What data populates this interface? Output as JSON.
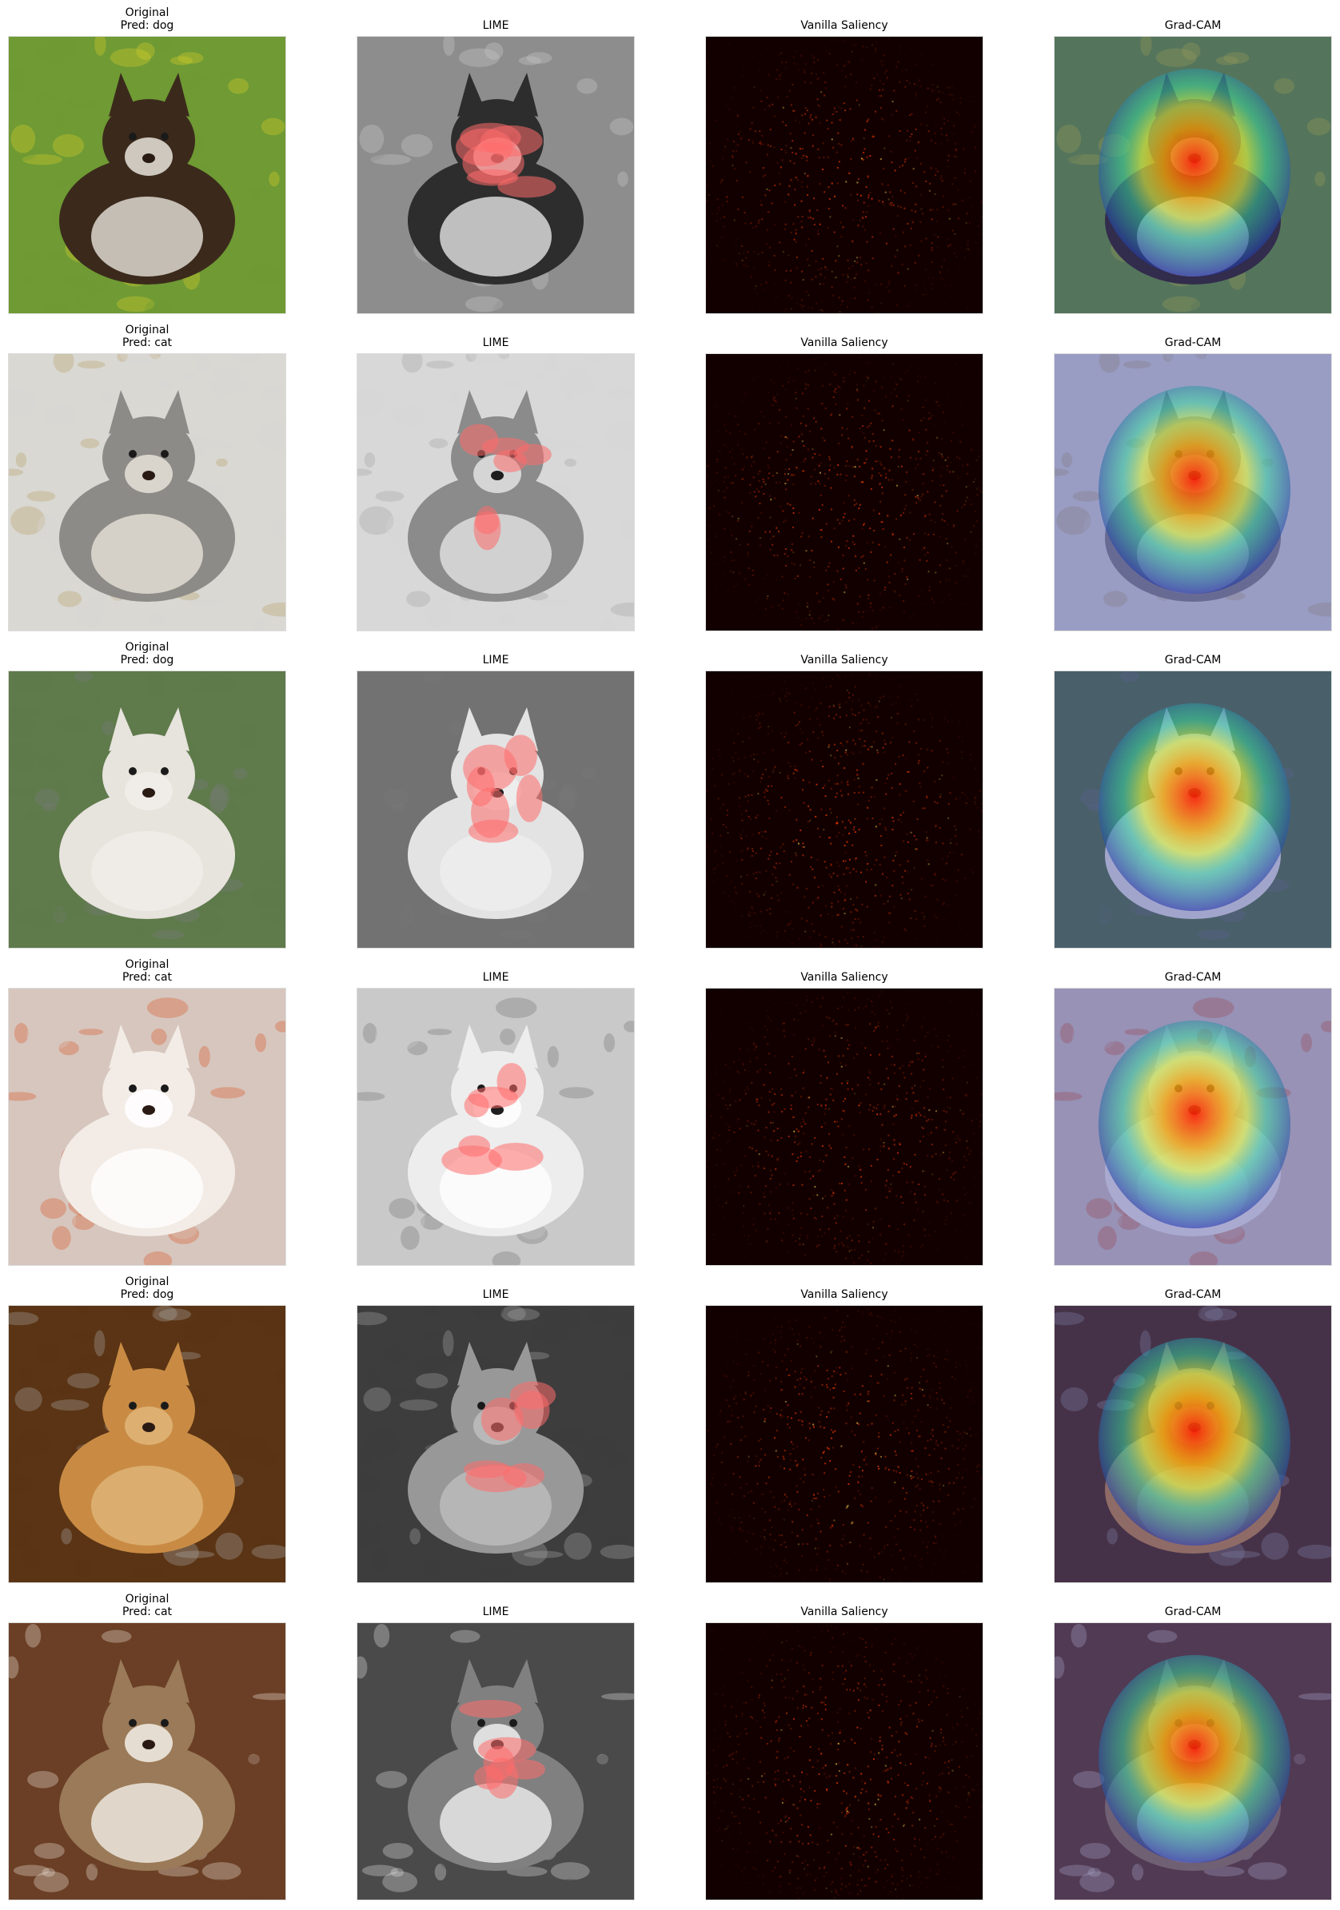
{
  "columns": [
    "original",
    "lime",
    "saliency",
    "gradcam"
  ],
  "rows": [
    {
      "prediction": "dog",
      "original_title": "Original\nPred: dog",
      "lime_title": "LIME",
      "saliency_title": "Vanilla Saliency",
      "gradcam_title": "Grad-CAM",
      "subject": "dog-running-in-grass",
      "palette": {
        "bg": "#6f9a34",
        "accent": "#d8cf2a",
        "subject": "#3b2a1c",
        "subject_light": "#e9e4dc"
      }
    },
    {
      "prediction": "cat",
      "original_title": "Original\nPred: cat",
      "lime_title": "LIME",
      "saliency_title": "Vanilla Saliency",
      "gradcam_title": "Grad-CAM",
      "subject": "cat-sitting-on-stool",
      "palette": {
        "bg": "#d9d8d3",
        "accent": "#b9a46d",
        "subject": "#8d8b87",
        "subject_light": "#e8e2d8"
      }
    },
    {
      "prediction": "dog",
      "original_title": "Original\nPred: dog",
      "lime_title": "LIME",
      "saliency_title": "Vanilla Saliency",
      "gradcam_title": "Grad-CAM",
      "subject": "white-boxer-dog",
      "palette": {
        "bg": "#5f7a4b",
        "accent": "#777a7b",
        "subject": "#e7e3dd",
        "subject_light": "#f1eeea"
      }
    },
    {
      "prediction": "cat",
      "original_title": "Original\nPred: cat",
      "lime_title": "LIME",
      "saliency_title": "Vanilla Saliency",
      "gradcam_title": "Grad-CAM",
      "subject": "birman-cat",
      "palette": {
        "bg": "#d6c6be",
        "accent": "#db5a2c",
        "subject": "#f3ece6",
        "subject_light": "#ffffff"
      }
    },
    {
      "prediction": "dog",
      "original_title": "Original\nPred: dog",
      "lime_title": "LIME",
      "saliency_title": "Vanilla Saliency",
      "gradcam_title": "Grad-CAM",
      "subject": "yorkshire-terrier",
      "palette": {
        "bg": "#5a3414",
        "accent": "#a8a6a0",
        "subject": "#c98b44",
        "subject_light": "#e0b67a"
      }
    },
    {
      "prediction": "cat",
      "original_title": "Original\nPred: cat",
      "lime_title": "LIME",
      "saliency_title": "Vanilla Saliency",
      "gradcam_title": "Grad-CAM",
      "subject": "tabby-cat-sleeping",
      "palette": {
        "bg": "#6b3f25",
        "accent": "#e7ddd0",
        "subject": "#9a7a58",
        "subject_light": "#f3eee7"
      }
    }
  ],
  "colors": {
    "lime_highlight": "#ff6b6b",
    "saliency_base": "#120000",
    "saliency_hot": "#ff3b00",
    "gradcam_cold": "#2232a8",
    "gradcam_hot": "#ff1e00"
  }
}
